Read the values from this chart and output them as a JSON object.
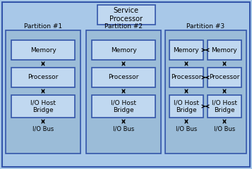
{
  "bg_color": "#a8c8e8",
  "partition_fill": "#9bbcd8",
  "box_fill": "#c0d8f0",
  "box_edge": "#3355aa",
  "title": "Service\nProcessor",
  "bus_label": "I/O Bus",
  "font_size": 6.5,
  "title_font_size": 7.0,
  "partition_labels": [
    "Partition #1",
    "Partition #2",
    "Partition #3"
  ],
  "outer_fill": "#a8c8e8",
  "gray_line": "#808080"
}
